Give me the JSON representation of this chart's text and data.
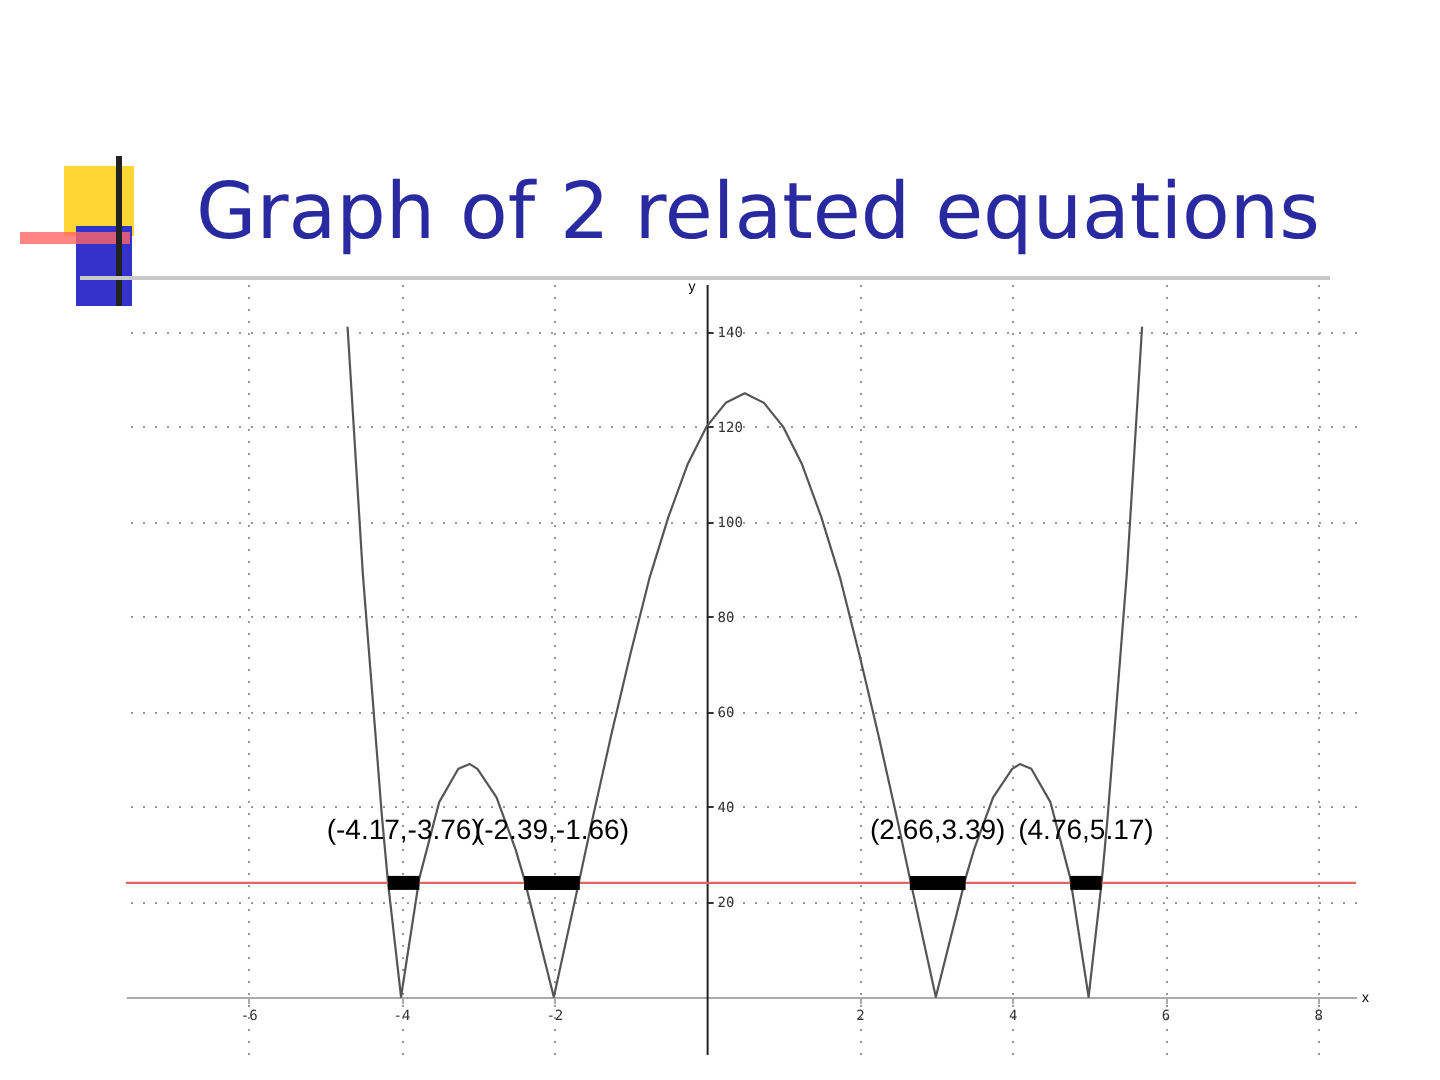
{
  "chart_data": {
    "type": "line",
    "title": "Graph of 2 related equations",
    "xlabel": "x",
    "ylabel": "y",
    "xlim": [
      -7.6,
      8.5
    ],
    "ylim": [
      -12,
      150
    ],
    "xticks": [
      -6,
      -4,
      -2,
      2,
      4,
      6,
      8
    ],
    "yticks": [
      20,
      40,
      60,
      80,
      100,
      120,
      140
    ],
    "grid": true,
    "series": [
      {
        "color": "#555555",
        "x": [
          -4.7,
          -4.5,
          -4.25,
          -4.17,
          -4,
          -3.76,
          -3.5,
          -3.25,
          -3.1,
          -3,
          -2.75,
          -2.5,
          -2.39,
          -2,
          -1.66,
          -1.5,
          -1.25,
          -1,
          -0.75,
          -0.5,
          -0.25,
          0,
          0.25,
          0.5,
          0.75,
          1,
          1.25,
          1.5,
          1.75,
          2,
          2.25,
          2.5,
          2.66,
          3,
          3.39,
          3.5,
          3.75,
          4,
          4.1,
          4.25,
          4.5,
          4.76,
          5,
          5.17,
          5.25,
          5.5,
          5.7
        ],
        "values": [
          141,
          89,
          38,
          24,
          0,
          25,
          41,
          48,
          49,
          48,
          42,
          31,
          25,
          0,
          25,
          37,
          55,
          72,
          88,
          101,
          112,
          120,
          125,
          127,
          125,
          120,
          112,
          101,
          88,
          72,
          55,
          37,
          25,
          0,
          25,
          31,
          42,
          48,
          49,
          48,
          41,
          25,
          0,
          24,
          38,
          89,
          141
        ]
      },
      {
        "color": "#000000",
        "x": [
          -4.17,
          -3.76
        ],
        "values": [
          24,
          24
        ]
      },
      {
        "color": "#000000",
        "x": [
          -2.39,
          -1.66
        ],
        "values": [
          24,
          24
        ]
      },
      {
        "color": "#000000",
        "x": [
          2.66,
          3.39
        ],
        "values": [
          24,
          24
        ]
      },
      {
        "color": "#000000",
        "x": [
          4.76,
          5.17
        ],
        "values": [
          24,
          24
        ]
      }
    ],
    "ref_lines": [
      {
        "axis": "y",
        "value": 24,
        "color": "#e06666"
      }
    ],
    "annotations": [
      "(-4.17,-3.76)",
      "(-2.39,-1.66)",
      "(2.66,3.39)",
      "(4.76,5.17)"
    ]
  }
}
